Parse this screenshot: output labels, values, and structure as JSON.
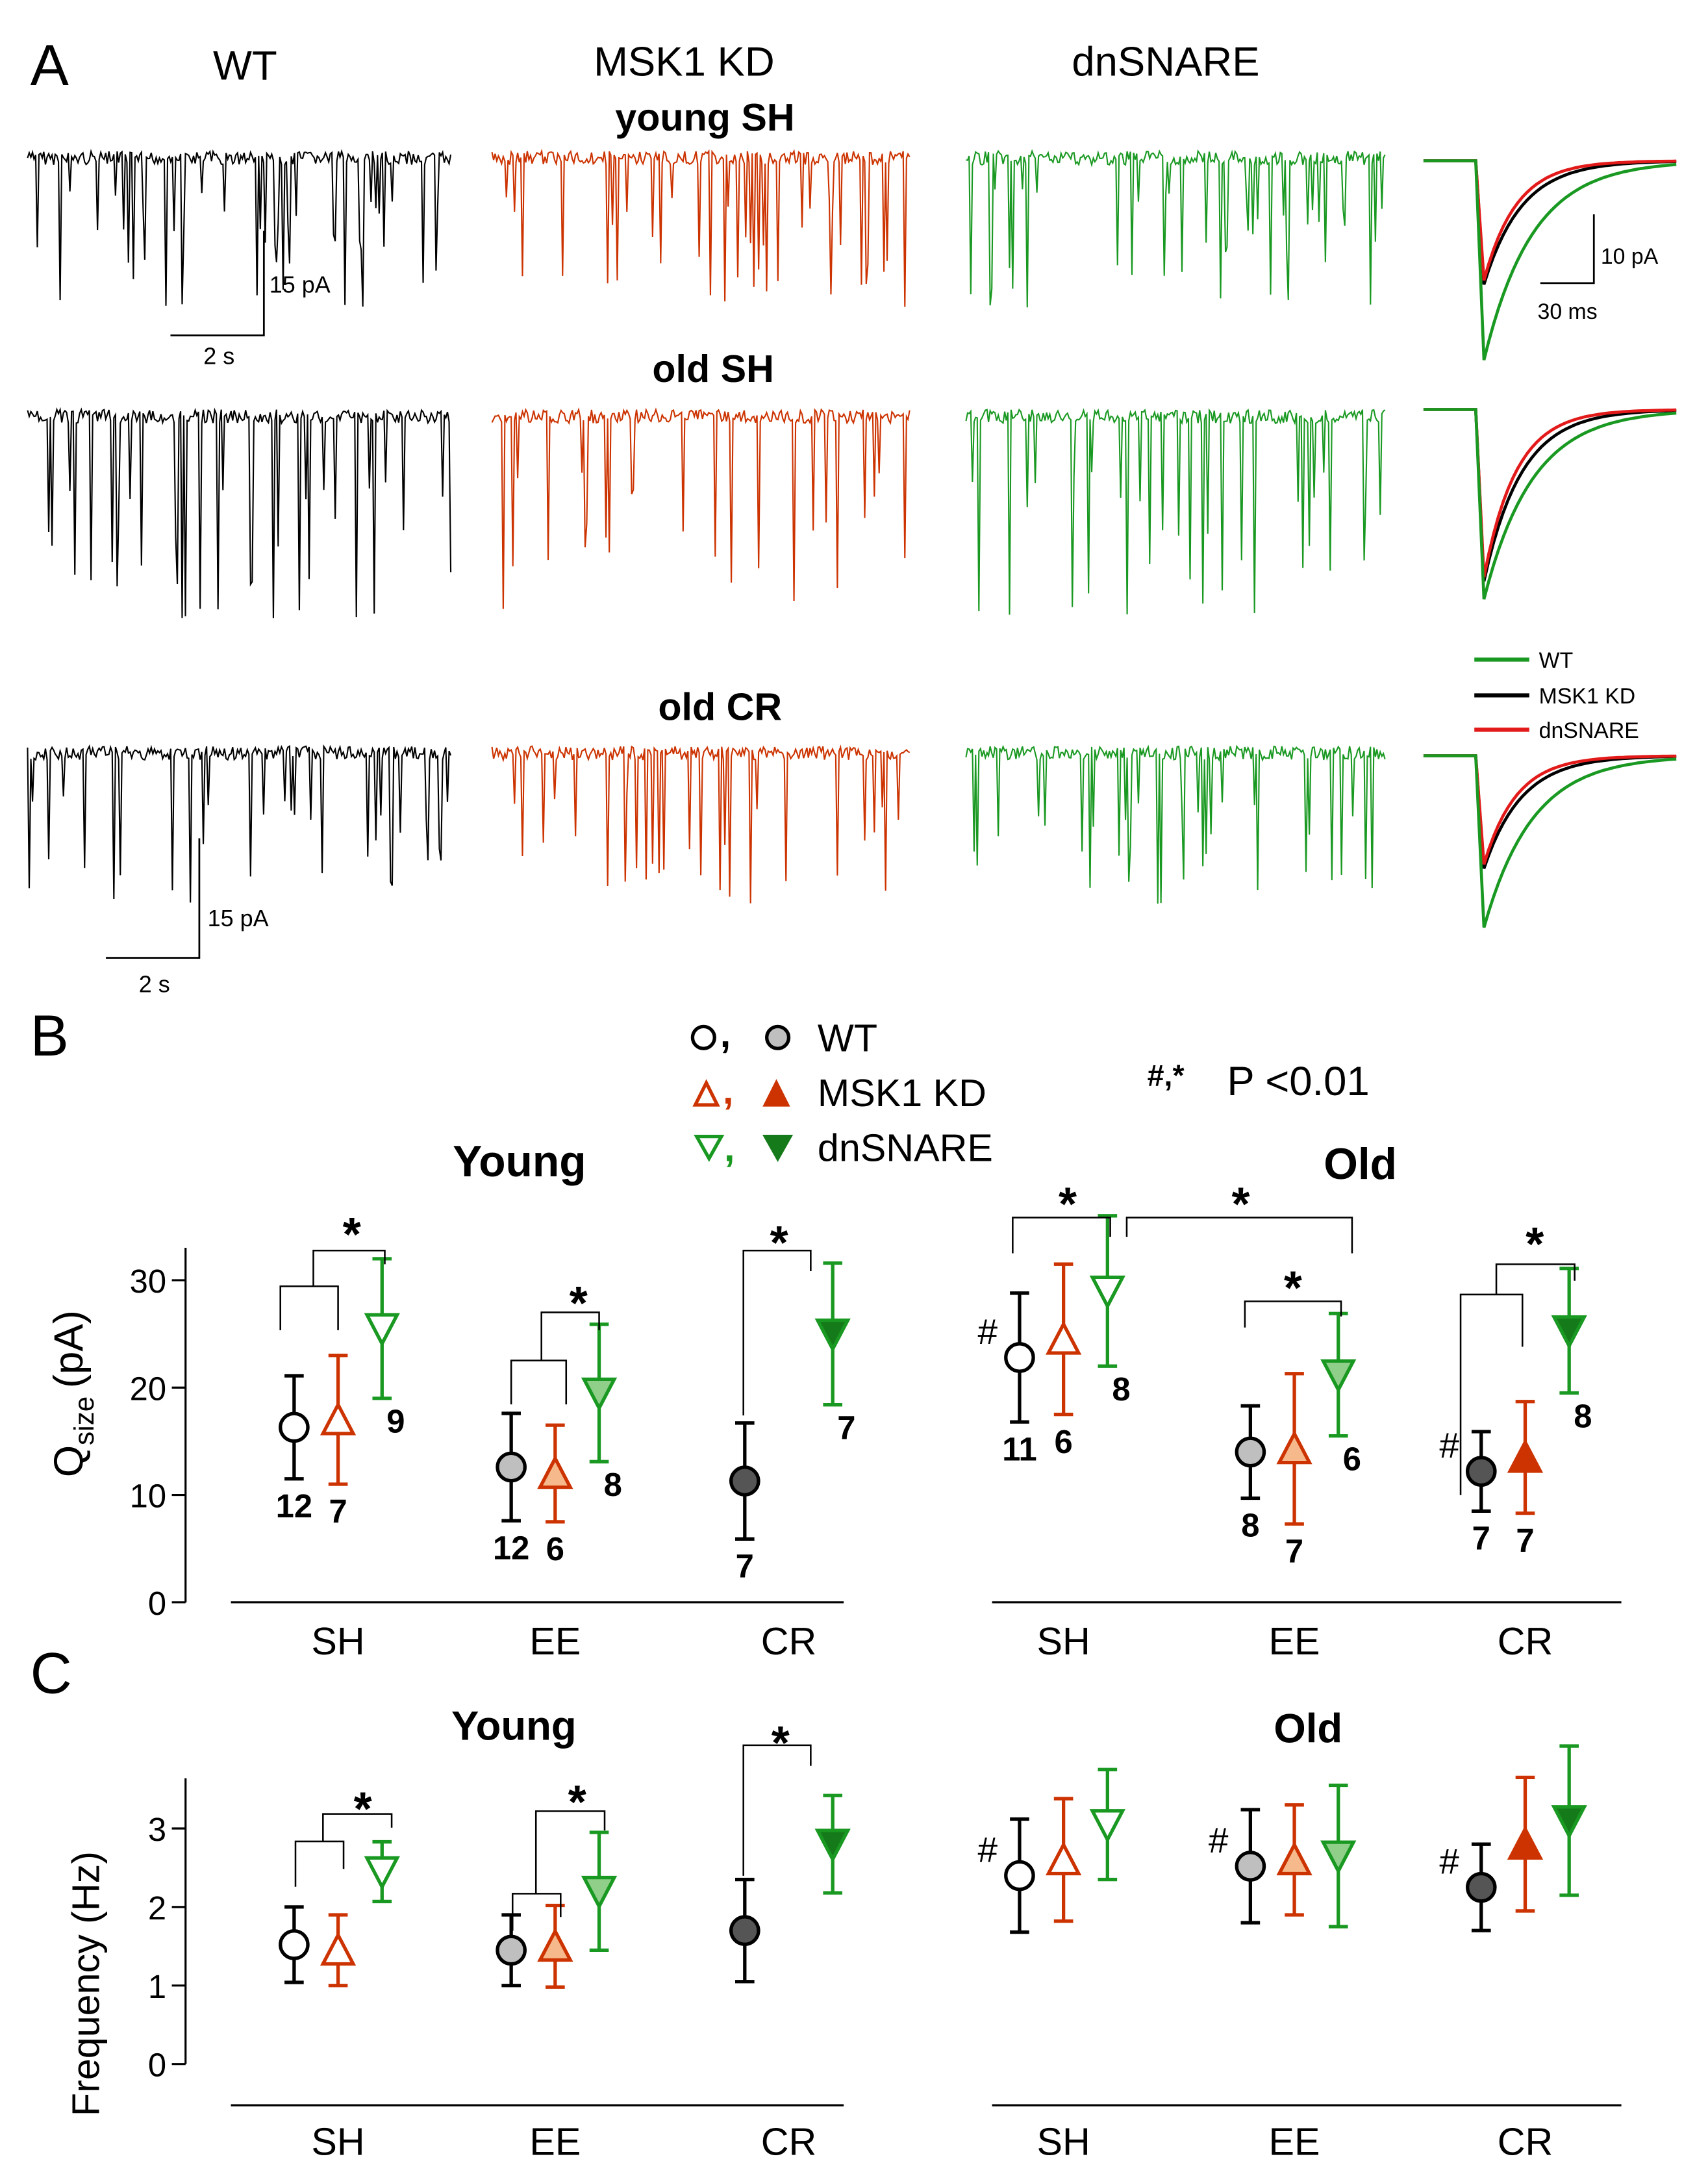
{
  "panel_letters": {
    "a": "A",
    "b": "B",
    "c": "C"
  },
  "colors": {
    "wt": "#000000",
    "msk": "#cc3300",
    "dn": "#1a9922",
    "ee_wt_fill": "#bfbfbf",
    "cr_wt_fill": "#555555",
    "ee_msk_fill": "#f6b98c",
    "cr_msk_fill": "#cc3300",
    "ee_dn_fill": "#8fcf8a",
    "cr_dn_fill": "#157a1a",
    "avg_wt": "#1a9922",
    "avg_msk": "#000000",
    "avg_dn": "#e31a1a"
  },
  "panel_a": {
    "col_titles": [
      "WT",
      "MSK1 KD",
      "dnSNARE"
    ],
    "row_titles": [
      "young SH",
      "old SH",
      "old CR"
    ],
    "trace_scale_top": {
      "amp": "15 pA",
      "time": "2 s"
    },
    "trace_scale_bottom": {
      "amp": "15 pA",
      "time": "2 s"
    },
    "average_scale": {
      "amp": "10 pA",
      "time": "30 ms"
    },
    "average_legend": [
      "WT",
      "MSK1 KD",
      "dnSNARE"
    ]
  },
  "legend": {
    "wt": "WT",
    "msk": "MSK1 KD",
    "dn": "dnSNARE",
    "stat": "P <0.01",
    "stat_symbols": "#,*"
  },
  "chart_data": [
    {
      "type": "scatter",
      "panel": "B",
      "title_young": "Young",
      "title_old": "Old",
      "ylabel": "Q",
      "ylabel_sub": "size",
      "ylabel_unit": "(pA)",
      "ylim": [
        0,
        32
      ],
      "yticks": [
        "0",
        "10",
        "20",
        "30"
      ],
      "groups": [
        "SH",
        "EE",
        "CR"
      ],
      "young": {
        "WT": {
          "mean": [
            16.3,
            12.6,
            11.3
          ],
          "err": [
            4.8,
            5.0,
            5.4
          ],
          "n": [
            "12",
            "12",
            "7"
          ]
        },
        "MSK1 KD": {
          "mean": [
            17.0,
            12.0,
            null
          ],
          "err": [
            6.0,
            4.5,
            null
          ],
          "n": [
            "7",
            "6",
            ""
          ]
        },
        "dnSNARE": {
          "mean": [
            25.5,
            19.5,
            25.0
          ],
          "err": [
            6.5,
            6.4,
            6.6
          ],
          "n": [
            "9",
            "8",
            "7"
          ]
        }
      },
      "old": {
        "WT": {
          "mean": [
            22.8,
            14.0,
            12.2
          ],
          "err": [
            6.0,
            4.3,
            3.7
          ],
          "n": [
            "11",
            "8",
            "7"
          ],
          "hash": [
            "#",
            "",
            "#"
          ]
        },
        "MSK1 KD": {
          "mean": [
            24.5,
            14.3,
            13.5
          ],
          "err": [
            7.0,
            7.0,
            5.2
          ],
          "n": [
            "6",
            "7",
            "7"
          ]
        },
        "dnSNARE": {
          "mean": [
            29.0,
            21.2,
            25.3
          ],
          "err": [
            7.0,
            5.7,
            5.8
          ],
          "n": [
            "8",
            "6",
            "8"
          ]
        }
      },
      "significance": "*"
    },
    {
      "type": "scatter",
      "panel": "C",
      "title_young": "Young",
      "title_old": "Old",
      "ylabel": "Frequency (Hz)",
      "ylim": [
        0,
        3.5
      ],
      "yticks": [
        "0",
        "1",
        "2",
        "3"
      ],
      "groups": [
        "SH",
        "EE",
        "CR"
      ],
      "young": {
        "WT": {
          "mean": [
            1.52,
            1.45,
            1.7
          ],
          "err": [
            0.48,
            0.45,
            0.65
          ]
        },
        "MSK1 KD": {
          "mean": [
            1.45,
            1.5,
            null
          ],
          "err": [
            0.45,
            0.52,
            null
          ]
        },
        "dnSNARE": {
          "mean": [
            2.45,
            2.2,
            2.8
          ],
          "err": [
            0.38,
            0.75,
            0.62
          ]
        }
      },
      "old": {
        "WT": {
          "mean": [
            2.4,
            2.52,
            2.25
          ],
          "err": [
            0.72,
            0.72,
            0.55
          ],
          "hash": [
            "#",
            "#",
            "#"
          ]
        },
        "MSK1 KD": {
          "mean": [
            2.6,
            2.6,
            2.8
          ],
          "err": [
            0.78,
            0.7,
            0.85
          ]
        },
        "dnSNARE": {
          "mean": [
            3.05,
            2.65,
            3.1
          ],
          "err": [
            0.7,
            0.9,
            0.95
          ]
        }
      },
      "significance": "*"
    }
  ]
}
